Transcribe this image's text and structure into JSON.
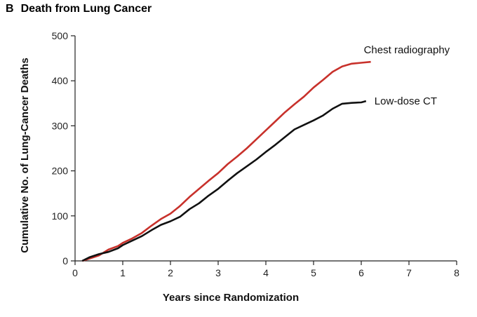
{
  "chart_data": {
    "type": "line",
    "panel_letter": "B",
    "title": "Death from Lung Cancer",
    "xlabel": "Years since Randomization",
    "ylabel": "Cumulative No. of Lung-Cancer Deaths",
    "xlim": [
      0,
      8
    ],
    "ylim": [
      0,
      500
    ],
    "xticks": [
      0,
      1,
      2,
      3,
      4,
      5,
      6,
      7,
      8
    ],
    "yticks": [
      0,
      100,
      200,
      300,
      400,
      500
    ],
    "grid": false,
    "legend": "direct labels at line ends",
    "series": [
      {
        "name": "Chest radiography",
        "color": "#c8312b",
        "x": [
          0.15,
          0.3,
          0.5,
          0.7,
          0.9,
          1.0,
          1.2,
          1.4,
          1.6,
          1.8,
          2.0,
          2.2,
          2.4,
          2.6,
          2.8,
          3.0,
          3.2,
          3.4,
          3.6,
          3.8,
          4.0,
          4.2,
          4.4,
          4.6,
          4.8,
          5.0,
          5.2,
          5.4,
          5.6,
          5.8,
          6.0,
          6.2
        ],
        "y": [
          0,
          5,
          12,
          25,
          33,
          40,
          50,
          62,
          78,
          93,
          105,
          122,
          142,
          160,
          178,
          195,
          215,
          232,
          250,
          270,
          290,
          310,
          330,
          348,
          365,
          385,
          402,
          420,
          432,
          438,
          440,
          442
        ]
      },
      {
        "name": "Low-dose CT",
        "color": "#111111",
        "x": [
          0.15,
          0.3,
          0.5,
          0.7,
          0.9,
          1.0,
          1.2,
          1.4,
          1.6,
          1.8,
          2.0,
          2.2,
          2.4,
          2.6,
          2.8,
          3.0,
          3.2,
          3.4,
          3.6,
          3.8,
          4.0,
          4.2,
          4.4,
          4.6,
          4.8,
          5.0,
          5.2,
          5.4,
          5.6,
          5.8,
          6.0,
          6.1
        ],
        "y": [
          0,
          8,
          15,
          20,
          28,
          35,
          45,
          55,
          68,
          80,
          88,
          98,
          115,
          128,
          145,
          160,
          178,
          195,
          210,
          225,
          242,
          258,
          275,
          292,
          302,
          312,
          323,
          338,
          349,
          351,
          352,
          355
        ]
      }
    ]
  }
}
